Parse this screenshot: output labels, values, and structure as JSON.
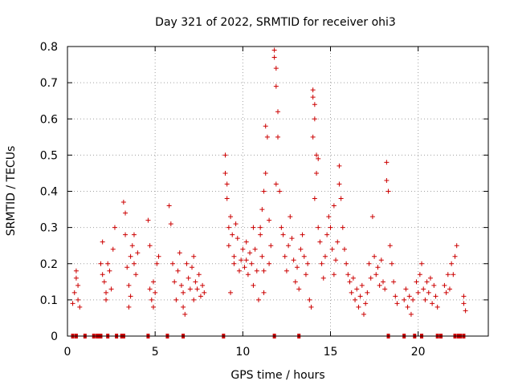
{
  "chart_data": {
    "type": "scatter",
    "title": "Day 321 of 2022, SRMTID for receiver ohi3",
    "xlabel": "GPS time / hours",
    "ylabel": "SRMTID / TECUs",
    "xlim": [
      0,
      24
    ],
    "ylim": [
      0,
      0.8
    ],
    "xticks": [
      0,
      5,
      10,
      15,
      20
    ],
    "yticks": [
      0,
      0.1,
      0.2,
      0.3,
      0.4,
      0.5,
      0.6,
      0.7,
      0.8
    ],
    "xtick_labels": [
      "0",
      "5",
      "10",
      "15",
      "20"
    ],
    "ytick_labels": [
      "0",
      "0.1",
      "0.2",
      "0.3",
      "0.4",
      "0.5",
      "0.6",
      "0.7",
      "0.8"
    ],
    "grid": true,
    "marker": "+",
    "color": "#cc0000",
    "series": [
      {
        "name": "SRMTID",
        "points": [
          [
            0.3,
            0.09
          ],
          [
            0.4,
            0.12
          ],
          [
            0.5,
            0.16
          ],
          [
            0.6,
            0.14
          ],
          [
            0.7,
            0.08
          ],
          [
            0.5,
            0.18
          ],
          [
            0.6,
            0.1
          ],
          [
            1.9,
            0.2
          ],
          [
            2.0,
            0.26
          ],
          [
            2.1,
            0.15
          ],
          [
            2.2,
            0.12
          ],
          [
            2.3,
            0.2
          ],
          [
            2.4,
            0.18
          ],
          [
            2.5,
            0.13
          ],
          [
            2.6,
            0.24
          ],
          [
            2.7,
            0.3
          ],
          [
            2.2,
            0.1
          ],
          [
            2.0,
            0.17
          ],
          [
            3.2,
            0.37
          ],
          [
            3.3,
            0.28
          ],
          [
            3.4,
            0.19
          ],
          [
            3.5,
            0.14
          ],
          [
            3.6,
            0.22
          ],
          [
            3.7,
            0.25
          ],
          [
            3.8,
            0.2
          ],
          [
            3.9,
            0.17
          ],
          [
            4.0,
            0.23
          ],
          [
            3.6,
            0.11
          ],
          [
            3.3,
            0.34
          ],
          [
            3.5,
            0.08
          ],
          [
            3.8,
            0.28
          ],
          [
            4.6,
            0.32
          ],
          [
            4.7,
            0.13
          ],
          [
            4.8,
            0.1
          ],
          [
            4.9,
            0.15
          ],
          [
            5.0,
            0.12
          ],
          [
            5.1,
            0.2
          ],
          [
            5.2,
            0.22
          ],
          [
            4.7,
            0.25
          ],
          [
            4.9,
            0.08
          ],
          [
            5.8,
            0.36
          ],
          [
            5.9,
            0.31
          ],
          [
            6.0,
            0.2
          ],
          [
            6.1,
            0.15
          ],
          [
            6.2,
            0.1
          ],
          [
            6.3,
            0.18
          ],
          [
            6.4,
            0.23
          ],
          [
            6.5,
            0.14
          ],
          [
            6.6,
            0.12
          ],
          [
            6.7,
            0.06
          ],
          [
            6.8,
            0.2
          ],
          [
            6.9,
            0.16
          ],
          [
            7.0,
            0.13
          ],
          [
            7.1,
            0.19
          ],
          [
            7.2,
            0.1
          ],
          [
            7.3,
            0.15
          ],
          [
            7.4,
            0.13
          ],
          [
            7.5,
            0.17
          ],
          [
            7.6,
            0.11
          ],
          [
            7.7,
            0.14
          ],
          [
            7.8,
            0.12
          ],
          [
            7.2,
            0.22
          ],
          [
            6.6,
            0.08
          ],
          [
            9.0,
            0.5
          ],
          [
            9.0,
            0.45
          ],
          [
            9.1,
            0.42
          ],
          [
            9.1,
            0.38
          ],
          [
            9.2,
            0.3
          ],
          [
            9.2,
            0.25
          ],
          [
            9.3,
            0.33
          ],
          [
            9.4,
            0.28
          ],
          [
            9.5,
            0.22
          ],
          [
            9.6,
            0.31
          ],
          [
            9.7,
            0.27
          ],
          [
            9.8,
            0.18
          ],
          [
            9.9,
            0.21
          ],
          [
            9.3,
            0.12
          ],
          [
            9.5,
            0.2
          ],
          [
            10.0,
            0.24
          ],
          [
            10.1,
            0.19
          ],
          [
            10.2,
            0.21
          ],
          [
            10.3,
            0.17
          ],
          [
            10.4,
            0.23
          ],
          [
            10.5,
            0.2
          ],
          [
            10.6,
            0.14
          ],
          [
            10.7,
            0.24
          ],
          [
            10.8,
            0.18
          ],
          [
            10.9,
            0.1
          ],
          [
            10.2,
            0.26
          ],
          [
            10.6,
            0.3
          ],
          [
            11.0,
            0.28
          ],
          [
            11.1,
            0.35
          ],
          [
            11.2,
            0.4
          ],
          [
            11.3,
            0.45
          ],
          [
            11.0,
            0.3
          ],
          [
            11.1,
            0.22
          ],
          [
            11.2,
            0.18
          ],
          [
            11.3,
            0.58
          ],
          [
            11.4,
            0.55
          ],
          [
            11.5,
            0.32
          ],
          [
            11.6,
            0.25
          ],
          [
            11.2,
            0.12
          ],
          [
            11.5,
            0.2
          ],
          [
            11.8,
            0.79
          ],
          [
            11.8,
            0.77
          ],
          [
            11.9,
            0.74
          ],
          [
            11.9,
            0.69
          ],
          [
            12.0,
            0.62
          ],
          [
            12.0,
            0.55
          ],
          [
            11.9,
            0.42
          ],
          [
            12.1,
            0.4
          ],
          [
            12.2,
            0.3
          ],
          [
            12.3,
            0.28
          ],
          [
            12.4,
            0.22
          ],
          [
            12.5,
            0.18
          ],
          [
            12.6,
            0.25
          ],
          [
            12.7,
            0.33
          ],
          [
            12.8,
            0.27
          ],
          [
            12.9,
            0.21
          ],
          [
            13.0,
            0.15
          ],
          [
            13.1,
            0.19
          ],
          [
            13.2,
            0.13
          ],
          [
            13.3,
            0.24
          ],
          [
            13.4,
            0.28
          ],
          [
            13.5,
            0.22
          ],
          [
            13.6,
            0.17
          ],
          [
            13.7,
            0.2
          ],
          [
            13.8,
            0.1
          ],
          [
            13.9,
            0.08
          ],
          [
            14.0,
            0.68
          ],
          [
            14.0,
            0.66
          ],
          [
            14.1,
            0.64
          ],
          [
            14.1,
            0.6
          ],
          [
            14.0,
            0.55
          ],
          [
            14.2,
            0.5
          ],
          [
            14.2,
            0.45
          ],
          [
            14.1,
            0.38
          ],
          [
            14.3,
            0.3
          ],
          [
            14.3,
            0.49
          ],
          [
            14.4,
            0.26
          ],
          [
            14.5,
            0.2
          ],
          [
            14.6,
            0.16
          ],
          [
            14.7,
            0.22
          ],
          [
            14.8,
            0.28
          ],
          [
            14.9,
            0.33
          ],
          [
            15.0,
            0.3
          ],
          [
            15.1,
            0.24
          ],
          [
            15.2,
            0.17
          ],
          [
            15.3,
            0.21
          ],
          [
            15.4,
            0.26
          ],
          [
            15.5,
            0.47
          ],
          [
            15.5,
            0.42
          ],
          [
            15.6,
            0.38
          ],
          [
            15.7,
            0.3
          ],
          [
            15.8,
            0.24
          ],
          [
            15.9,
            0.2
          ],
          [
            16.0,
            0.17
          ],
          [
            16.1,
            0.15
          ],
          [
            15.2,
            0.36
          ],
          [
            16.2,
            0.12
          ],
          [
            16.3,
            0.16
          ],
          [
            16.4,
            0.1
          ],
          [
            16.5,
            0.13
          ],
          [
            16.6,
            0.08
          ],
          [
            16.7,
            0.11
          ],
          [
            16.8,
            0.14
          ],
          [
            16.9,
            0.06
          ],
          [
            17.0,
            0.09
          ],
          [
            17.1,
            0.12
          ],
          [
            17.2,
            0.2
          ],
          [
            17.3,
            0.16
          ],
          [
            17.4,
            0.33
          ],
          [
            17.5,
            0.22
          ],
          [
            17.6,
            0.17
          ],
          [
            17.7,
            0.19
          ],
          [
            17.8,
            0.14
          ],
          [
            17.9,
            0.21
          ],
          [
            18.0,
            0.15
          ],
          [
            18.1,
            0.13
          ],
          [
            18.2,
            0.48
          ],
          [
            18.2,
            0.43
          ],
          [
            18.3,
            0.4
          ],
          [
            18.4,
            0.25
          ],
          [
            18.5,
            0.2
          ],
          [
            18.6,
            0.15
          ],
          [
            18.7,
            0.11
          ],
          [
            18.8,
            0.09
          ],
          [
            19.2,
            0.1
          ],
          [
            19.3,
            0.13
          ],
          [
            19.4,
            0.08
          ],
          [
            19.5,
            0.11
          ],
          [
            19.6,
            0.06
          ],
          [
            19.7,
            0.1
          ],
          [
            19.9,
            0.15
          ],
          [
            20.0,
            0.12
          ],
          [
            20.1,
            0.17
          ],
          [
            20.2,
            0.2
          ],
          [
            20.3,
            0.13
          ],
          [
            20.4,
            0.1
          ],
          [
            20.5,
            0.15
          ],
          [
            20.6,
            0.12
          ],
          [
            20.7,
            0.16
          ],
          [
            20.8,
            0.09
          ],
          [
            20.9,
            0.14
          ],
          [
            21.0,
            0.11
          ],
          [
            21.1,
            0.08
          ],
          [
            21.5,
            0.14
          ],
          [
            21.6,
            0.12
          ],
          [
            21.7,
            0.17
          ],
          [
            21.8,
            0.13
          ],
          [
            21.9,
            0.2
          ],
          [
            22.0,
            0.17
          ],
          [
            22.1,
            0.22
          ],
          [
            22.2,
            0.25
          ],
          [
            22.6,
            0.11
          ],
          [
            22.7,
            0.07
          ],
          [
            22.6,
            0.09
          ]
        ],
        "zero_x": [
          0.3,
          0.5,
          1.0,
          1.5,
          1.7,
          1.8,
          1.9,
          2.3,
          2.8,
          3.1,
          3.2,
          4.6,
          5.7,
          6.6,
          8.9,
          11.8,
          13.2,
          18.3,
          19.2,
          19.8,
          20.2,
          21.1,
          21.3,
          22.1,
          22.3,
          22.4,
          22.6
        ]
      }
    ]
  }
}
